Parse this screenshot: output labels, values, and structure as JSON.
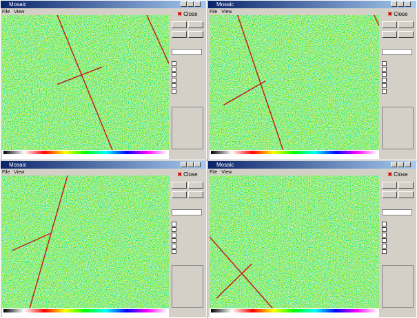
{
  "windows": [
    {
      "title": "Mosaic",
      "menu": [
        "File",
        "View"
      ],
      "close": "Close"
    },
    {
      "title": "Mosaic",
      "menu": [
        "File",
        "View"
      ],
      "close": "Close"
    },
    {
      "title": "Mosaic",
      "menu": [
        "File",
        "View"
      ],
      "close": "Close"
    },
    {
      "title": "Mosaic",
      "menu": [
        "File",
        "View"
      ],
      "close": "Close"
    }
  ]
}
